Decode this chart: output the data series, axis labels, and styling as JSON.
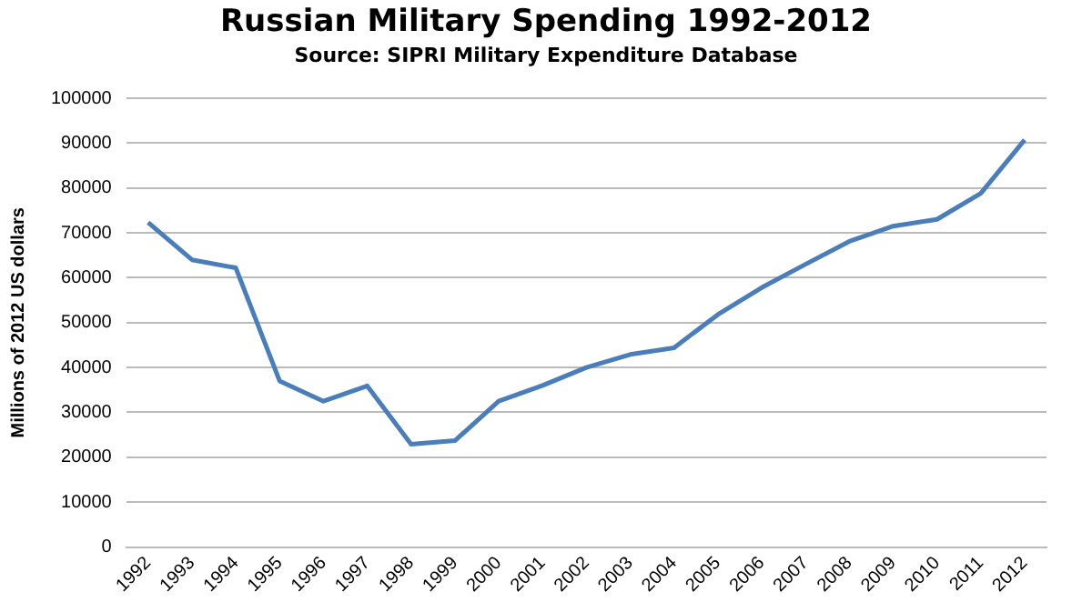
{
  "chart_data": {
    "type": "line",
    "title": "Russian Military Spending 1992-2012",
    "subtitle": "Source: SIPRI Military Expenditure Database",
    "ylabel": "Millions of 2012 US dollars",
    "categories": [
      "1992",
      "1993",
      "1994",
      "1995",
      "1996",
      "1997",
      "1998",
      "1999",
      "2000",
      "2001",
      "2002",
      "2003",
      "2004",
      "2005",
      "2006",
      "2007",
      "2008",
      "2009",
      "2010",
      "2011",
      "2012"
    ],
    "series": [
      {
        "color": "#4a7ebb",
        "values": [
          72300,
          64000,
          62200,
          37000,
          32500,
          35900,
          22900,
          23700,
          32500,
          36000,
          40000,
          42900,
          44400,
          51800,
          57800,
          63000,
          68100,
          71500,
          73000,
          78800,
          90700
        ]
      }
    ],
    "ylim": [
      0,
      100000
    ],
    "yticks": [
      0,
      10000,
      20000,
      30000,
      40000,
      50000,
      60000,
      70000,
      80000,
      90000,
      100000
    ],
    "grid": "y",
    "legend": false,
    "marker": "none"
  }
}
